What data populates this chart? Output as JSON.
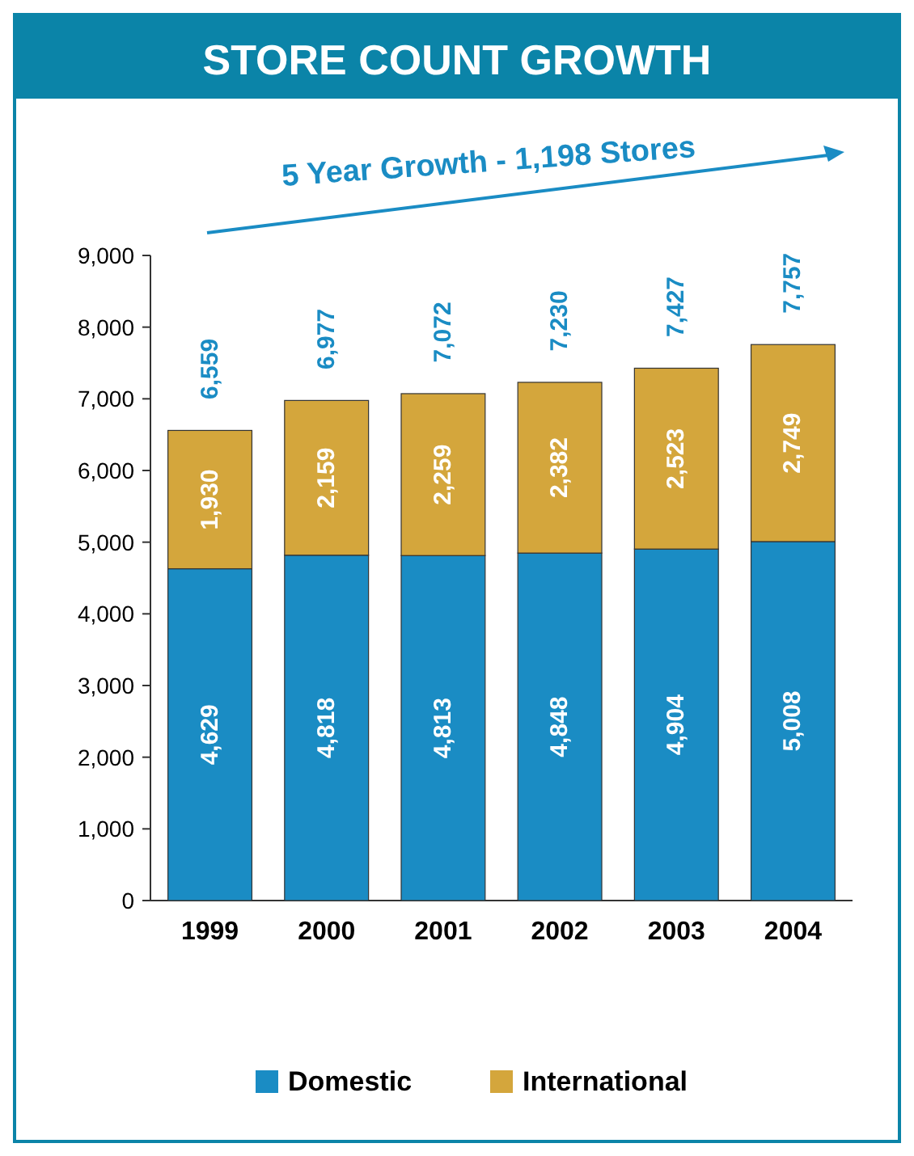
{
  "chart_data": {
    "type": "bar",
    "title": "STORE COUNT GROWTH",
    "categories": [
      "1999",
      "2000",
      "2001",
      "2002",
      "2003",
      "2004"
    ],
    "series": [
      {
        "name": "Domestic",
        "color": "#1a8cc4",
        "values": [
          4629,
          4818,
          4813,
          4848,
          4904,
          5008
        ],
        "value_labels": [
          "4,629",
          "4,818",
          "4,813",
          "4,848",
          "4,904",
          "5,008"
        ]
      },
      {
        "name": "International",
        "color": "#d4a63c",
        "values": [
          1930,
          2159,
          2259,
          2382,
          2523,
          2749
        ],
        "value_labels": [
          "1,930",
          "2,159",
          "2,259",
          "2,382",
          "2,523",
          "2,749"
        ]
      }
    ],
    "stacked": true,
    "totals": [
      "6,559",
      "6,977",
      "7,072",
      "7,230",
      "7,427",
      "7,757"
    ],
    "ylim": [
      0,
      9000
    ],
    "yticks": [
      {
        "value": 0,
        "label": "0"
      },
      {
        "value": 1000,
        "label": "1,000"
      },
      {
        "value": 2000,
        "label": "2,000"
      },
      {
        "value": 3000,
        "label": "3,000"
      },
      {
        "value": 4000,
        "label": "4,000"
      },
      {
        "value": 5000,
        "label": "5,000"
      },
      {
        "value": 6000,
        "label": "6,000"
      },
      {
        "value": 7000,
        "label": "7,000"
      },
      {
        "value": 8000,
        "label": "8,000"
      },
      {
        "value": 9000,
        "label": "9,000"
      }
    ],
    "annotations": [
      "5 Year Growth - 1,198 Stores"
    ],
    "grid": false,
    "legend": "bottom"
  }
}
